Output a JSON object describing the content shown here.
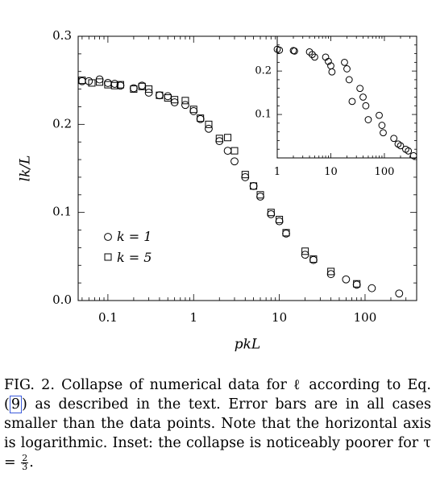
{
  "chart_data": [
    {
      "type": "scatter",
      "xlabel": "pkL",
      "ylabel": "lk/L",
      "xscale": "log",
      "xlim": [
        0.045,
        400
      ],
      "ylim": [
        0,
        0.3
      ],
      "xticks": [
        0.1,
        1,
        10,
        100
      ],
      "xtick_labels": [
        "0.1",
        "1",
        "10",
        "100"
      ],
      "yticks": [
        0,
        0.1,
        0.2,
        0.3
      ],
      "ytick_labels": [
        "0.0",
        "0.1",
        "0.2",
        "0.3"
      ],
      "legend": "lower-left",
      "grid": false,
      "series": [
        {
          "name": "k = 1",
          "marker": "circle",
          "x": [
            0.05,
            0.06,
            0.08,
            0.1,
            0.12,
            0.14,
            0.2,
            0.25,
            0.3,
            0.4,
            0.5,
            0.6,
            0.8,
            1.0,
            1.2,
            1.5,
            2.0,
            2.5,
            3.0,
            4.0,
            5.0,
            6.0,
            8.0,
            10.0,
            12.0,
            20.0,
            25.0,
            40.0,
            60.0,
            80.0,
            120.0,
            250.0
          ],
          "y": [
            0.249,
            0.249,
            0.251,
            0.247,
            0.246,
            0.244,
            0.241,
            0.244,
            0.236,
            0.233,
            0.232,
            0.225,
            0.222,
            0.215,
            0.206,
            0.195,
            0.181,
            0.17,
            0.158,
            0.14,
            0.13,
            0.118,
            0.098,
            0.09,
            0.076,
            0.052,
            0.046,
            0.03,
            0.024,
            0.018,
            0.014,
            0.008
          ]
        },
        {
          "name": "k = 5",
          "marker": "square",
          "x": [
            0.05,
            0.065,
            0.08,
            0.1,
            0.12,
            0.14,
            0.2,
            0.25,
            0.3,
            0.4,
            0.5,
            0.6,
            0.8,
            1.0,
            1.2,
            1.5,
            2.0,
            2.5,
            3.0,
            4.0,
            5.0,
            6.0,
            8.0,
            10.0,
            12.0,
            20.0,
            25.0,
            40.0,
            80.0
          ],
          "y": [
            0.25,
            0.247,
            0.248,
            0.245,
            0.244,
            0.245,
            0.24,
            0.243,
            0.24,
            0.233,
            0.23,
            0.228,
            0.227,
            0.217,
            0.207,
            0.2,
            0.184,
            0.185,
            0.17,
            0.143,
            0.13,
            0.12,
            0.1,
            0.092,
            0.077,
            0.056,
            0.047,
            0.033,
            0.019
          ]
        }
      ]
    },
    {
      "type": "scatter",
      "inset": true,
      "xscale": "log",
      "xlim": [
        1,
        400
      ],
      "ylim": [
        0,
        0.28
      ],
      "xticks": [
        1,
        10,
        100
      ],
      "xtick_labels": [
        "1",
        "10",
        "100"
      ],
      "yticks": [
        0.1,
        0.2
      ],
      "ytick_labels": [
        "0.1",
        "0.2"
      ],
      "series": [
        {
          "marker": "circle",
          "x": [
            1.0,
            1.1,
            2.0,
            2.1,
            4.0,
            4.5,
            5.0,
            8.0,
            9.0,
            10.0,
            10.5,
            18.0,
            20.0,
            22.0,
            25.0,
            35.0,
            40.0,
            45.0,
            50.0,
            80.0,
            90.0,
            95.0,
            150.0,
            180.0,
            200.0,
            250.0,
            280.0,
            350.0
          ],
          "y": [
            0.25,
            0.248,
            0.247,
            0.246,
            0.244,
            0.238,
            0.232,
            0.232,
            0.222,
            0.212,
            0.198,
            0.22,
            0.205,
            0.18,
            0.13,
            0.16,
            0.14,
            0.12,
            0.088,
            0.098,
            0.075,
            0.058,
            0.045,
            0.032,
            0.028,
            0.02,
            0.016,
            0.005
          ]
        }
      ]
    }
  ],
  "legend_labels": [
    "k = 1",
    "k = 5"
  ],
  "caption": {
    "label": "FIG. 2.",
    "before_ref": "Collapse of numerical data for ℓ according to Eq. (",
    "ref": "9",
    "after_ref": ") as described in the text. Error bars are in all cases smaller than the data points. Note that the horizontal axis is logarithmic. Inset: the collapse is noticeably poorer for τ = ",
    "frac_num": "2",
    "frac_den": "3",
    "end": "."
  }
}
